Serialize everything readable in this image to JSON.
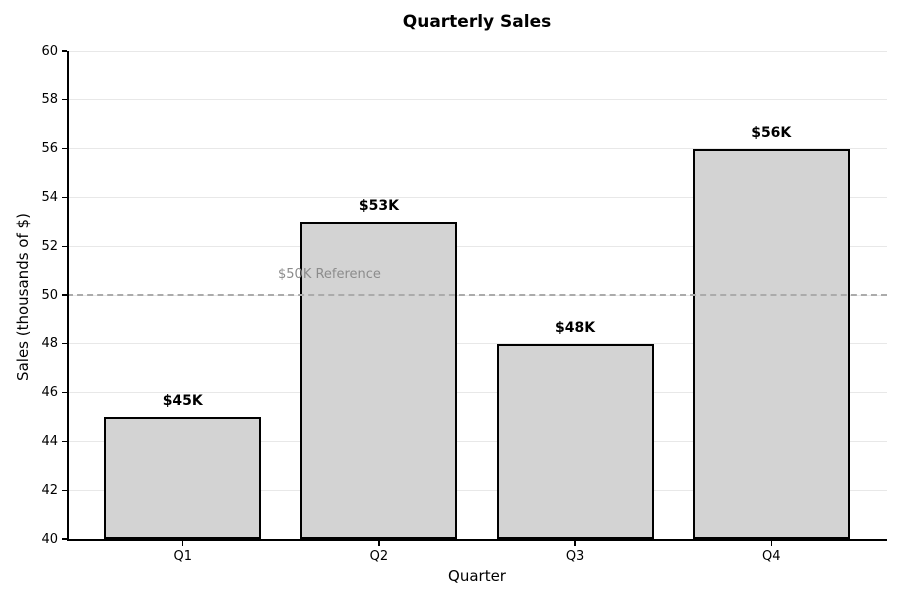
{
  "chart_data": {
    "type": "bar",
    "title": "Quarterly Sales",
    "xlabel": "Quarter",
    "ylabel": "Sales (thousands of $)",
    "categories": [
      "Q1",
      "Q2",
      "Q3",
      "Q4"
    ],
    "values": [
      45,
      53,
      48,
      56
    ],
    "bar_value_labels": [
      "$45K",
      "$53K",
      "$48K",
      "$56K"
    ],
    "ylim": [
      40,
      60
    ],
    "yticks": [
      40,
      42,
      44,
      46,
      48,
      50,
      52,
      54,
      56,
      58,
      60
    ],
    "grid": "horizontal-only",
    "legend": "none",
    "reference_line": {
      "value": 50,
      "label": "$50K Reference",
      "style": "dashed"
    },
    "colors": {
      "bar_fill": "#d3d3d3",
      "bar_edge": "#000000",
      "grid": "#e8e8e8",
      "reference_line": "#ababab",
      "reference_label": "#8c8c8c",
      "axis": "#000000",
      "text": "#000000",
      "background": "#ffffff"
    }
  }
}
